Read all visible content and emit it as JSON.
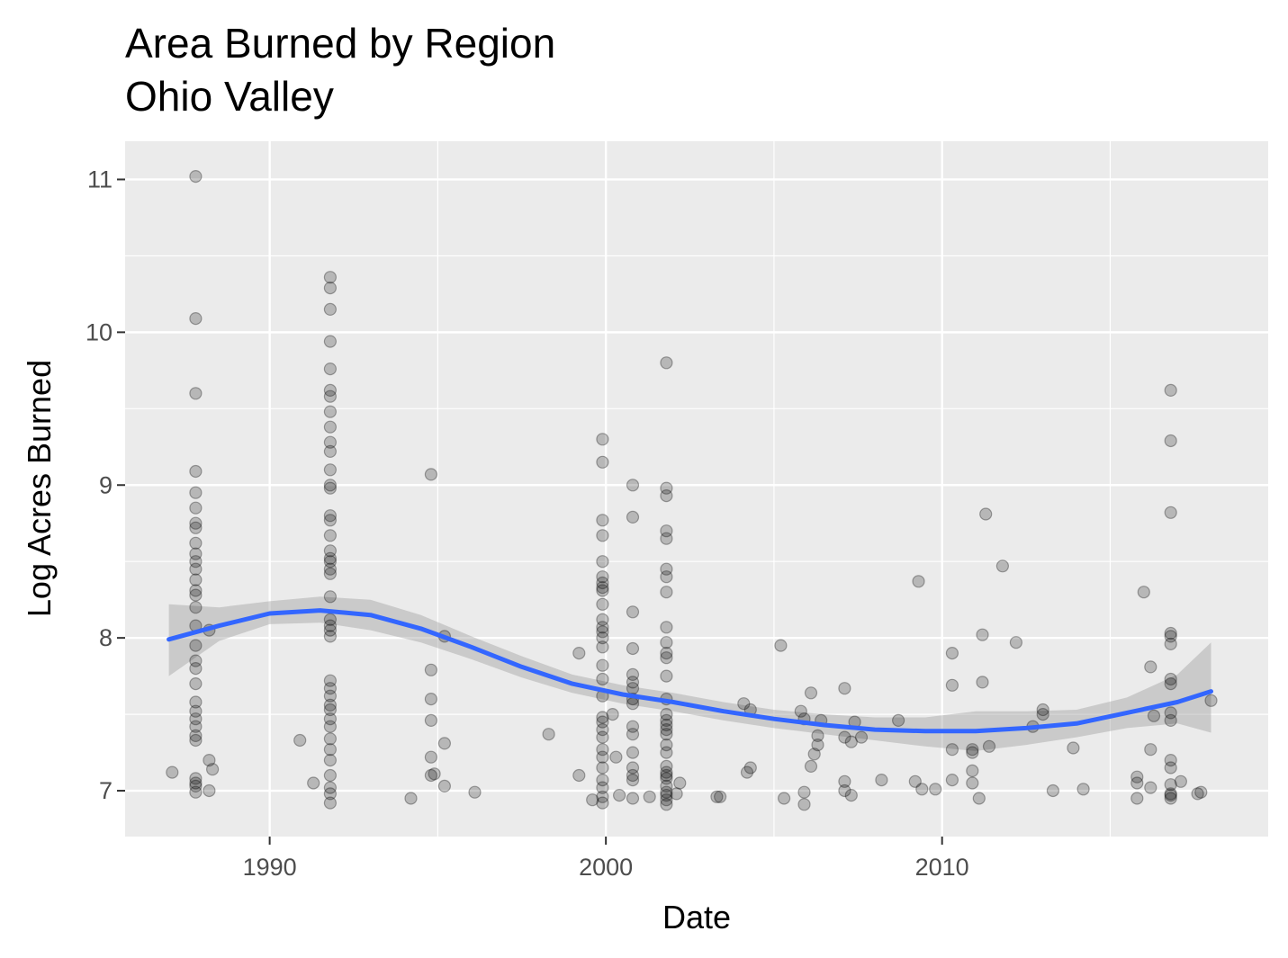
{
  "chart_data": {
    "type": "scatter",
    "title": "Area Burned by Region",
    "subtitle": "Ohio Valley",
    "xlabel": "Date",
    "ylabel": "Log Acres Burned",
    "xlim": [
      1985.7,
      2019.7
    ],
    "ylim": [
      6.7,
      11.25
    ],
    "x_ticks": [
      1990,
      2000,
      2010
    ],
    "y_ticks": [
      7,
      8,
      9,
      10,
      11
    ],
    "x_minor": [
      1985,
      1995,
      2005,
      2015
    ],
    "y_minor": [
      7.5,
      8.5,
      9.5,
      10.5
    ],
    "grid": true,
    "colors": {
      "panel_background": "#ebebeb",
      "grid": "#ffffff",
      "point": "#000000",
      "smooth_line": "#3366ff",
      "confidence_band": "#999999"
    },
    "points": [
      [
        1987.1,
        7.12
      ],
      [
        1987.8,
        11.02
      ],
      [
        1987.8,
        10.09
      ],
      [
        1987.8,
        9.6
      ],
      [
        1987.8,
        9.09
      ],
      [
        1987.8,
        8.95
      ],
      [
        1987.8,
        8.85
      ],
      [
        1987.8,
        8.75
      ],
      [
        1987.8,
        8.72
      ],
      [
        1987.8,
        8.62
      ],
      [
        1987.8,
        8.55
      ],
      [
        1987.8,
        8.5
      ],
      [
        1987.8,
        8.45
      ],
      [
        1987.8,
        8.38
      ],
      [
        1987.8,
        8.31
      ],
      [
        1987.8,
        8.28
      ],
      [
        1987.8,
        8.2
      ],
      [
        1987.8,
        8.08
      ],
      [
        1987.8,
        7.95
      ],
      [
        1987.8,
        7.85
      ],
      [
        1987.8,
        7.8
      ],
      [
        1987.8,
        7.7
      ],
      [
        1987.8,
        7.58
      ],
      [
        1987.8,
        7.52
      ],
      [
        1987.8,
        7.47
      ],
      [
        1987.8,
        7.42
      ],
      [
        1987.8,
        7.36
      ],
      [
        1987.8,
        7.33
      ],
      [
        1987.8,
        7.08
      ],
      [
        1987.8,
        7.05
      ],
      [
        1987.8,
        7.03
      ],
      [
        1987.8,
        6.99
      ],
      [
        1988.2,
        8.05
      ],
      [
        1988.2,
        7.2
      ],
      [
        1988.3,
        7.14
      ],
      [
        1988.2,
        7.0
      ],
      [
        1990.9,
        7.33
      ],
      [
        1991.3,
        7.05
      ],
      [
        1991.8,
        10.36
      ],
      [
        1991.8,
        10.29
      ],
      [
        1991.8,
        10.15
      ],
      [
        1991.8,
        9.94
      ],
      [
        1991.8,
        9.76
      ],
      [
        1991.8,
        9.62
      ],
      [
        1991.8,
        9.58
      ],
      [
        1991.8,
        9.48
      ],
      [
        1991.8,
        9.38
      ],
      [
        1991.8,
        9.28
      ],
      [
        1991.8,
        9.22
      ],
      [
        1991.8,
        9.1
      ],
      [
        1991.8,
        9.0
      ],
      [
        1991.8,
        8.98
      ],
      [
        1991.8,
        8.8
      ],
      [
        1991.8,
        8.77
      ],
      [
        1991.8,
        8.67
      ],
      [
        1991.8,
        8.57
      ],
      [
        1991.8,
        8.52
      ],
      [
        1991.8,
        8.5
      ],
      [
        1991.8,
        8.45
      ],
      [
        1991.8,
        8.42
      ],
      [
        1991.8,
        8.27
      ],
      [
        1991.8,
        8.12
      ],
      [
        1991.8,
        8.08
      ],
      [
        1991.8,
        8.05
      ],
      [
        1991.8,
        8.01
      ],
      [
        1991.8,
        7.72
      ],
      [
        1991.8,
        7.67
      ],
      [
        1991.8,
        7.62
      ],
      [
        1991.8,
        7.56
      ],
      [
        1991.8,
        7.53
      ],
      [
        1991.8,
        7.47
      ],
      [
        1991.8,
        7.42
      ],
      [
        1991.8,
        7.34
      ],
      [
        1991.8,
        7.27
      ],
      [
        1991.8,
        7.2
      ],
      [
        1991.8,
        7.1
      ],
      [
        1991.8,
        7.02
      ],
      [
        1991.8,
        6.98
      ],
      [
        1991.8,
        6.92
      ],
      [
        1994.2,
        6.95
      ],
      [
        1994.8,
        9.07
      ],
      [
        1994.8,
        7.79
      ],
      [
        1994.8,
        7.6
      ],
      [
        1994.8,
        7.46
      ],
      [
        1994.8,
        7.22
      ],
      [
        1994.8,
        7.1
      ],
      [
        1994.9,
        7.11
      ],
      [
        1995.2,
        8.01
      ],
      [
        1995.2,
        7.31
      ],
      [
        1995.2,
        7.03
      ],
      [
        1996.1,
        6.99
      ],
      [
        1998.3,
        7.37
      ],
      [
        1999.2,
        7.9
      ],
      [
        1999.2,
        7.1
      ],
      [
        1999.6,
        6.94
      ],
      [
        1999.9,
        9.3
      ],
      [
        1999.9,
        9.15
      ],
      [
        1999.9,
        8.77
      ],
      [
        1999.9,
        8.67
      ],
      [
        1999.9,
        8.5
      ],
      [
        1999.9,
        8.4
      ],
      [
        1999.9,
        8.36
      ],
      [
        1999.9,
        8.33
      ],
      [
        1999.9,
        8.31
      ],
      [
        1999.9,
        8.22
      ],
      [
        1999.9,
        8.12
      ],
      [
        1999.9,
        8.07
      ],
      [
        1999.9,
        8.04
      ],
      [
        1999.9,
        8.0
      ],
      [
        1999.9,
        7.94
      ],
      [
        1999.9,
        7.82
      ],
      [
        1999.9,
        7.73
      ],
      [
        1999.9,
        7.62
      ],
      [
        1999.9,
        7.48
      ],
      [
        1999.9,
        7.45
      ],
      [
        1999.9,
        7.4
      ],
      [
        1999.9,
        7.35
      ],
      [
        1999.9,
        7.27
      ],
      [
        1999.9,
        7.22
      ],
      [
        1999.9,
        7.15
      ],
      [
        1999.9,
        7.07
      ],
      [
        1999.9,
        7.02
      ],
      [
        1999.9,
        6.96
      ],
      [
        1999.9,
        6.92
      ],
      [
        2000.2,
        7.5
      ],
      [
        2000.3,
        7.22
      ],
      [
        2000.4,
        6.97
      ],
      [
        2000.8,
        9.0
      ],
      [
        2000.8,
        8.79
      ],
      [
        2000.8,
        8.17
      ],
      [
        2000.8,
        7.93
      ],
      [
        2000.8,
        7.76
      ],
      [
        2000.8,
        7.71
      ],
      [
        2000.8,
        7.67
      ],
      [
        2000.8,
        7.6
      ],
      [
        2000.8,
        7.57
      ],
      [
        2000.8,
        7.42
      ],
      [
        2000.8,
        7.37
      ],
      [
        2000.8,
        7.25
      ],
      [
        2000.8,
        7.15
      ],
      [
        2000.8,
        7.1
      ],
      [
        2000.8,
        7.07
      ],
      [
        2000.8,
        6.95
      ],
      [
        2001.3,
        6.96
      ],
      [
        2001.8,
        9.8
      ],
      [
        2001.8,
        8.98
      ],
      [
        2001.8,
        8.93
      ],
      [
        2001.8,
        8.7
      ],
      [
        2001.8,
        8.65
      ],
      [
        2001.8,
        8.45
      ],
      [
        2001.8,
        8.4
      ],
      [
        2001.8,
        8.3
      ],
      [
        2001.8,
        8.07
      ],
      [
        2001.8,
        7.97
      ],
      [
        2001.8,
        7.9
      ],
      [
        2001.8,
        7.87
      ],
      [
        2001.8,
        7.75
      ],
      [
        2001.8,
        7.6
      ],
      [
        2001.8,
        7.5
      ],
      [
        2001.8,
        7.46
      ],
      [
        2001.8,
        7.43
      ],
      [
        2001.8,
        7.4
      ],
      [
        2001.8,
        7.37
      ],
      [
        2001.8,
        7.3
      ],
      [
        2001.8,
        7.25
      ],
      [
        2001.8,
        7.16
      ],
      [
        2001.8,
        7.12
      ],
      [
        2001.8,
        7.1
      ],
      [
        2001.8,
        7.08
      ],
      [
        2001.8,
        7.03
      ],
      [
        2001.8,
        6.99
      ],
      [
        2001.8,
        6.97
      ],
      [
        2001.8,
        6.94
      ],
      [
        2001.8,
        6.91
      ],
      [
        2002.2,
        7.05
      ],
      [
        2002.1,
        6.98
      ],
      [
        2003.3,
        6.96
      ],
      [
        2003.4,
        6.96
      ],
      [
        2004.1,
        7.57
      ],
      [
        2004.3,
        7.15
      ],
      [
        2004.2,
        7.12
      ],
      [
        2004.3,
        7.53
      ],
      [
        2005.2,
        7.95
      ],
      [
        2005.3,
        6.95
      ],
      [
        2005.8,
        7.52
      ],
      [
        2005.9,
        7.47
      ],
      [
        2005.9,
        6.99
      ],
      [
        2005.9,
        6.91
      ],
      [
        2006.1,
        7.64
      ],
      [
        2006.1,
        7.16
      ],
      [
        2006.3,
        7.36
      ],
      [
        2006.2,
        7.24
      ],
      [
        2006.3,
        7.3
      ],
      [
        2006.4,
        7.46
      ],
      [
        2007.1,
        7.67
      ],
      [
        2007.1,
        7.06
      ],
      [
        2007.1,
        7.35
      ],
      [
        2007.1,
        7.0
      ],
      [
        2007.3,
        7.32
      ],
      [
        2007.4,
        7.45
      ],
      [
        2007.3,
        6.97
      ],
      [
        2007.6,
        7.35
      ],
      [
        2008.2,
        7.07
      ],
      [
        2008.7,
        7.46
      ],
      [
        2009.2,
        7.06
      ],
      [
        2009.3,
        8.37
      ],
      [
        2009.4,
        7.01
      ],
      [
        2009.8,
        7.01
      ],
      [
        2010.3,
        7.9
      ],
      [
        2010.3,
        7.69
      ],
      [
        2010.3,
        7.27
      ],
      [
        2010.3,
        7.07
      ],
      [
        2010.9,
        7.27
      ],
      [
        2010.9,
        7.25
      ],
      [
        2010.9,
        7.13
      ],
      [
        2010.9,
        7.05
      ],
      [
        2011.1,
        6.95
      ],
      [
        2011.2,
        8.02
      ],
      [
        2011.2,
        7.71
      ],
      [
        2011.3,
        8.81
      ],
      [
        2011.4,
        7.29
      ],
      [
        2011.8,
        8.47
      ],
      [
        2012.2,
        7.97
      ],
      [
        2012.7,
        7.42
      ],
      [
        2013.0,
        7.53
      ],
      [
        2013.0,
        7.5
      ],
      [
        2013.3,
        7.0
      ],
      [
        2013.9,
        7.28
      ],
      [
        2014.2,
        7.01
      ],
      [
        2015.8,
        7.09
      ],
      [
        2015.8,
        7.05
      ],
      [
        2015.8,
        6.95
      ],
      [
        2016.0,
        8.3
      ],
      [
        2016.2,
        7.81
      ],
      [
        2016.2,
        7.27
      ],
      [
        2016.3,
        7.49
      ],
      [
        2016.2,
        7.02
      ],
      [
        2016.8,
        9.62
      ],
      [
        2016.8,
        9.29
      ],
      [
        2016.8,
        8.82
      ],
      [
        2016.8,
        8.03
      ],
      [
        2016.8,
        8.01
      ],
      [
        2016.8,
        7.96
      ],
      [
        2016.8,
        7.73
      ],
      [
        2016.8,
        7.7
      ],
      [
        2016.8,
        7.51
      ],
      [
        2016.8,
        7.46
      ],
      [
        2016.8,
        7.2
      ],
      [
        2016.8,
        7.15
      ],
      [
        2016.8,
        7.04
      ],
      [
        2016.8,
        6.97
      ],
      [
        2016.8,
        6.95
      ],
      [
        2016.8,
        6.98
      ],
      [
        2017.1,
        7.06
      ],
      [
        2017.6,
        6.98
      ],
      [
        2017.7,
        6.99
      ],
      [
        2018.0,
        7.59
      ]
    ],
    "smooth": {
      "x": [
        1987.0,
        1988.5,
        1990.0,
        1991.5,
        1993.0,
        1994.5,
        1996.0,
        1997.5,
        1999.0,
        2000.5,
        2002.0,
        2003.5,
        2005.0,
        2006.5,
        2008.0,
        2009.5,
        2011.0,
        2012.5,
        2014.0,
        2015.5,
        2017.0,
        2018.0
      ],
      "y": [
        7.99,
        8.08,
        8.16,
        8.18,
        8.15,
        8.06,
        7.94,
        7.81,
        7.7,
        7.63,
        7.58,
        7.52,
        7.47,
        7.43,
        7.4,
        7.39,
        7.39,
        7.41,
        7.44,
        7.51,
        7.58,
        7.65
      ],
      "lower": [
        7.75,
        7.98,
        8.09,
        8.1,
        8.05,
        7.97,
        7.86,
        7.74,
        7.64,
        7.57,
        7.52,
        7.46,
        7.41,
        7.37,
        7.33,
        7.29,
        7.26,
        7.3,
        7.35,
        7.41,
        7.44,
        7.38
      ],
      "upper": [
        8.22,
        8.2,
        8.24,
        8.27,
        8.25,
        8.15,
        8.01,
        7.88,
        7.76,
        7.69,
        7.64,
        7.58,
        7.53,
        7.5,
        7.48,
        7.48,
        7.52,
        7.52,
        7.53,
        7.61,
        7.76,
        7.97
      ]
    }
  }
}
